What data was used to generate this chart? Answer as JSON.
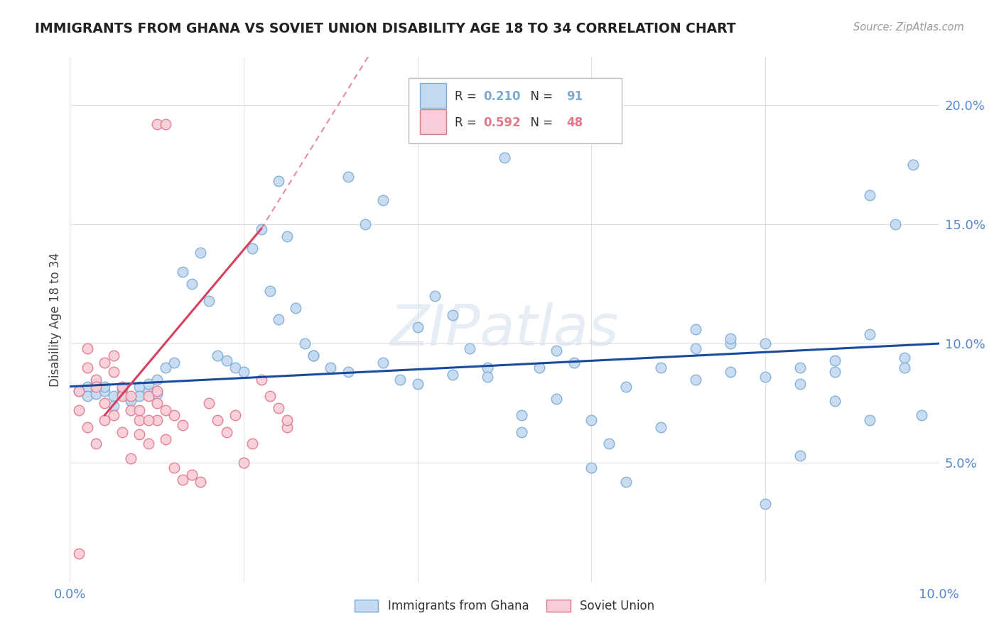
{
  "title": "IMMIGRANTS FROM GHANA VS SOVIET UNION DISABILITY AGE 18 TO 34 CORRELATION CHART",
  "source": "Source: ZipAtlas.com",
  "ylabel": "Disability Age 18 to 34",
  "xlim": [
    0.0,
    0.1
  ],
  "ylim": [
    0.0,
    0.22
  ],
  "xticks": [
    0.0,
    0.02,
    0.04,
    0.06,
    0.08,
    0.1
  ],
  "yticks": [
    0.0,
    0.05,
    0.1,
    0.15,
    0.2
  ],
  "ghana_color": "#c5d9f0",
  "ghana_edge_color": "#7aadd4",
  "soviet_color": "#f8ccd8",
  "soviet_edge_color": "#e0788a",
  "ghana_R": 0.21,
  "ghana_N": 91,
  "soviet_R": 0.592,
  "soviet_N": 48,
  "ghana_line_color": "#1a4a9e",
  "soviet_line_color": "#d84060",
  "background_color": "#ffffff",
  "grid_color": "#e0e0e0",
  "ghana_x": [
    0.001,
    0.002,
    0.002,
    0.003,
    0.003,
    0.004,
    0.004,
    0.005,
    0.005,
    0.006,
    0.006,
    0.007,
    0.007,
    0.008,
    0.008,
    0.009,
    0.009,
    0.01,
    0.01,
    0.011,
    0.012,
    0.013,
    0.014,
    0.015,
    0.016,
    0.017,
    0.018,
    0.019,
    0.02,
    0.021,
    0.022,
    0.023,
    0.024,
    0.025,
    0.026,
    0.027,
    0.028,
    0.03,
    0.032,
    0.034,
    0.036,
    0.038,
    0.04,
    0.042,
    0.044,
    0.046,
    0.048,
    0.05,
    0.052,
    0.054,
    0.056,
    0.058,
    0.06,
    0.062,
    0.064,
    0.024,
    0.028,
    0.032,
    0.036,
    0.04,
    0.044,
    0.048,
    0.052,
    0.056,
    0.06,
    0.064,
    0.068,
    0.072,
    0.076,
    0.08,
    0.084,
    0.088,
    0.092,
    0.072,
    0.076,
    0.08,
    0.084,
    0.088,
    0.092,
    0.096,
    0.068,
    0.072,
    0.076,
    0.08,
    0.084,
    0.088,
    0.092,
    0.095,
    0.096,
    0.097,
    0.098
  ],
  "ghana_y": [
    0.08,
    0.082,
    0.078,
    0.083,
    0.079,
    0.08,
    0.082,
    0.078,
    0.074,
    0.079,
    0.081,
    0.077,
    0.076,
    0.082,
    0.078,
    0.08,
    0.083,
    0.079,
    0.085,
    0.09,
    0.092,
    0.13,
    0.125,
    0.138,
    0.118,
    0.095,
    0.093,
    0.09,
    0.088,
    0.14,
    0.148,
    0.122,
    0.168,
    0.145,
    0.115,
    0.1,
    0.095,
    0.09,
    0.17,
    0.15,
    0.16,
    0.085,
    0.107,
    0.12,
    0.112,
    0.098,
    0.09,
    0.178,
    0.063,
    0.09,
    0.097,
    0.092,
    0.048,
    0.058,
    0.042,
    0.11,
    0.095,
    0.088,
    0.092,
    0.083,
    0.087,
    0.086,
    0.07,
    0.077,
    0.068,
    0.082,
    0.065,
    0.098,
    0.1,
    0.033,
    0.053,
    0.088,
    0.068,
    0.106,
    0.102,
    0.086,
    0.09,
    0.076,
    0.162,
    0.094,
    0.09,
    0.085,
    0.088,
    0.1,
    0.083,
    0.093,
    0.104,
    0.15,
    0.09,
    0.175,
    0.07
  ],
  "soviet_x": [
    0.001,
    0.001,
    0.002,
    0.002,
    0.003,
    0.003,
    0.004,
    0.004,
    0.005,
    0.005,
    0.006,
    0.006,
    0.007,
    0.007,
    0.008,
    0.008,
    0.009,
    0.009,
    0.01,
    0.01,
    0.011,
    0.011,
    0.012,
    0.012,
    0.013,
    0.013,
    0.014,
    0.015,
    0.016,
    0.017,
    0.018,
    0.019,
    0.02,
    0.021,
    0.022,
    0.023,
    0.024,
    0.025,
    0.002,
    0.003,
    0.004,
    0.005,
    0.006,
    0.007,
    0.008,
    0.009,
    0.01,
    0.025
  ],
  "soviet_y": [
    0.072,
    0.08,
    0.065,
    0.09,
    0.058,
    0.085,
    0.068,
    0.075,
    0.088,
    0.07,
    0.063,
    0.078,
    0.052,
    0.072,
    0.068,
    0.062,
    0.058,
    0.078,
    0.068,
    0.075,
    0.06,
    0.072,
    0.048,
    0.07,
    0.043,
    0.066,
    0.045,
    0.042,
    0.075,
    0.068,
    0.063,
    0.07,
    0.05,
    0.058,
    0.085,
    0.078,
    0.073,
    0.065,
    0.098,
    0.082,
    0.092,
    0.095,
    0.082,
    0.078,
    0.072,
    0.068,
    0.08,
    0.068
  ],
  "soviet_highpoints_x": [
    0.01,
    0.011
  ],
  "soviet_highpoints_y": [
    0.192,
    0.192
  ],
  "soviet_low_x": [
    0.001
  ],
  "soviet_low_y": [
    0.012
  ]
}
